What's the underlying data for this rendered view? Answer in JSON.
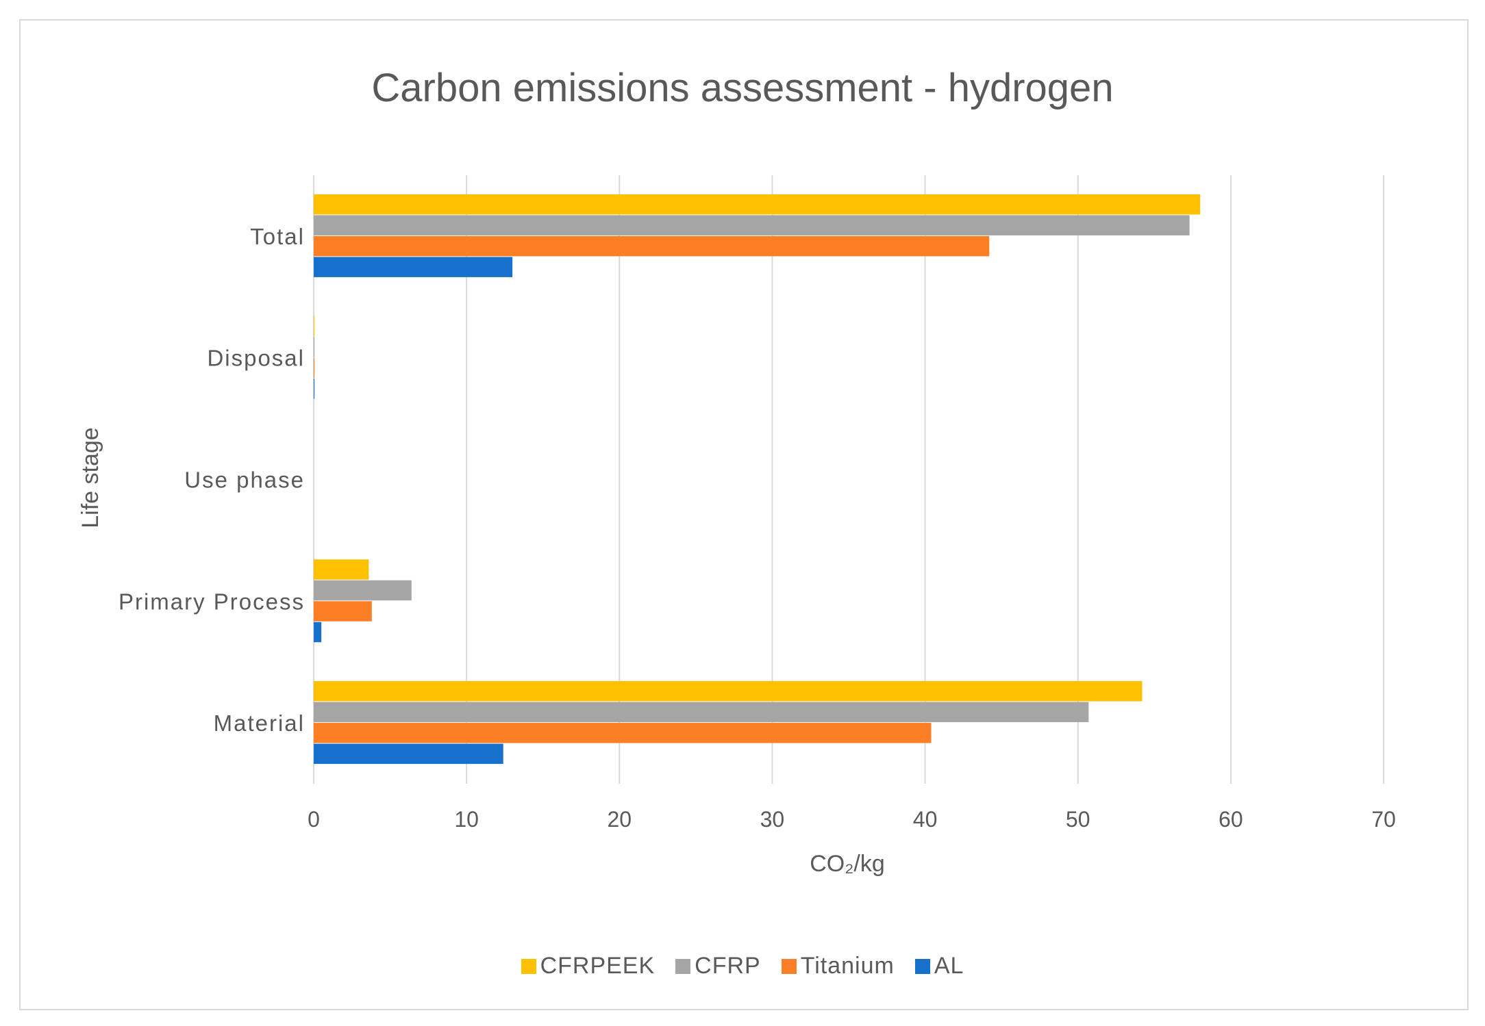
{
  "chart_data": {
    "type": "bar",
    "orientation": "horizontal",
    "title": "Carbon emissions assessment  -  hydrogen",
    "xlabel": "CO₂/kg",
    "ylabel": "Life stage",
    "categories": [
      "Material",
      "Primary Process",
      "Use phase",
      "Disposal",
      "Total"
    ],
    "xlim": [
      0,
      70
    ],
    "xticks": [
      0,
      10,
      20,
      30,
      40,
      50,
      60,
      70
    ],
    "grid": true,
    "legend_position": "bottom",
    "series": [
      {
        "name": "CFRPEEK",
        "color": "#ffc000",
        "values": [
          54.2,
          3.6,
          0,
          0.05,
          58.0
        ]
      },
      {
        "name": "CFRP",
        "color": "#a5a5a5",
        "values": [
          50.7,
          6.4,
          0,
          0.05,
          57.3
        ]
      },
      {
        "name": "Titanium",
        "color": "#fd7f25",
        "values": [
          40.4,
          3.8,
          0,
          0.05,
          44.2
        ]
      },
      {
        "name": "AL",
        "color": "#1670cc",
        "values": [
          12.4,
          0.5,
          0,
          0.05,
          13.0
        ]
      }
    ]
  }
}
